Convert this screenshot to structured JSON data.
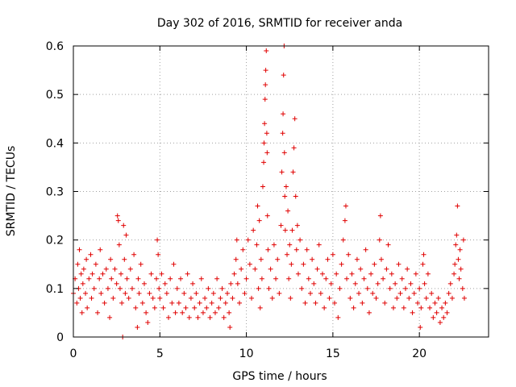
{
  "chart_data": {
    "type": "scatter",
    "title": "Day 302 of 2016, SRMTID for receiver anda",
    "xlabel": "GPS time / hours",
    "ylabel": "SRMTID / TECUs",
    "xlim": [
      0,
      24
    ],
    "ylim": [
      0,
      0.6
    ],
    "xticks": [
      0,
      5,
      10,
      15,
      20
    ],
    "xtick_labels": [
      "0",
      "5",
      "10",
      "15",
      "20"
    ],
    "yticks": [
      0,
      0.1,
      0.2,
      0.3,
      0.4,
      0.5,
      0.6
    ],
    "ytick_labels": [
      "0",
      "0.1",
      "0.2",
      "0.3",
      "0.4",
      "0.5",
      "0.6"
    ],
    "grid": true,
    "marker": "plus",
    "color": "#e00000",
    "series": [
      {
        "name": "SRMTID",
        "points": [
          [
            0.0,
            0.09
          ],
          [
            0.1,
            0.12
          ],
          [
            0.2,
            0.07
          ],
          [
            0.25,
            0.15
          ],
          [
            0.3,
            0.1
          ],
          [
            0.35,
            0.18
          ],
          [
            0.4,
            0.08
          ],
          [
            0.45,
            0.13
          ],
          [
            0.5,
            0.05
          ],
          [
            0.55,
            0.11
          ],
          [
            0.6,
            0.14
          ],
          [
            0.7,
            0.09
          ],
          [
            0.75,
            0.16
          ],
          [
            0.8,
            0.06
          ],
          [
            0.9,
            0.12
          ],
          [
            1.0,
            0.17
          ],
          [
            1.05,
            0.08
          ],
          [
            1.1,
            0.13
          ],
          [
            1.2,
            0.1
          ],
          [
            1.3,
            0.15
          ],
          [
            1.4,
            0.05
          ],
          [
            1.5,
            0.12
          ],
          [
            1.55,
            0.18
          ],
          [
            1.6,
            0.09
          ],
          [
            1.7,
            0.13
          ],
          [
            1.8,
            0.07
          ],
          [
            1.9,
            0.14
          ],
          [
            2.0,
            0.1
          ],
          [
            2.1,
            0.04
          ],
          [
            2.15,
            0.16
          ],
          [
            2.2,
            0.12
          ],
          [
            2.3,
            0.08
          ],
          [
            2.4,
            0.14
          ],
          [
            2.5,
            0.11
          ],
          [
            2.55,
            0.25
          ],
          [
            2.6,
            0.24
          ],
          [
            2.65,
            0.19
          ],
          [
            2.7,
            0.1
          ],
          [
            2.75,
            0.13
          ],
          [
            2.8,
            0.07
          ],
          [
            2.85,
            0.0
          ],
          [
            2.9,
            0.23
          ],
          [
            2.95,
            0.16
          ],
          [
            3.0,
            0.09
          ],
          [
            3.05,
            0.21
          ],
          [
            3.1,
            0.12
          ],
          [
            3.2,
            0.08
          ],
          [
            3.3,
            0.14
          ],
          [
            3.4,
            0.1
          ],
          [
            3.5,
            0.17
          ],
          [
            3.6,
            0.06
          ],
          [
            3.7,
            0.02
          ],
          [
            3.75,
            0.12
          ],
          [
            3.8,
            0.09
          ],
          [
            3.9,
            0.15
          ],
          [
            4.0,
            0.07
          ],
          [
            4.1,
            0.11
          ],
          [
            4.2,
            0.05
          ],
          [
            4.3,
            0.03
          ],
          [
            4.4,
            0.09
          ],
          [
            4.5,
            0.13
          ],
          [
            4.6,
            0.08
          ],
          [
            4.7,
            0.06
          ],
          [
            4.8,
            0.12
          ],
          [
            4.85,
            0.2
          ],
          [
            4.9,
            0.17
          ],
          [
            4.95,
            0.1
          ],
          [
            5.0,
            0.08
          ],
          [
            5.1,
            0.13
          ],
          [
            5.2,
            0.06
          ],
          [
            5.3,
            0.11
          ],
          [
            5.4,
            0.09
          ],
          [
            5.5,
            0.04
          ],
          [
            5.6,
            0.12
          ],
          [
            5.7,
            0.07
          ],
          [
            5.8,
            0.15
          ],
          [
            5.9,
            0.05
          ],
          [
            6.0,
            0.1
          ],
          [
            6.1,
            0.07
          ],
          [
            6.2,
            0.12
          ],
          [
            6.3,
            0.05
          ],
          [
            6.4,
            0.09
          ],
          [
            6.5,
            0.06
          ],
          [
            6.6,
            0.13
          ],
          [
            6.7,
            0.04
          ],
          [
            6.8,
            0.08
          ],
          [
            6.9,
            0.11
          ],
          [
            7.0,
            0.06
          ],
          [
            7.1,
            0.09
          ],
          [
            7.2,
            0.04
          ],
          [
            7.3,
            0.07
          ],
          [
            7.4,
            0.12
          ],
          [
            7.5,
            0.05
          ],
          [
            7.6,
            0.08
          ],
          [
            7.7,
            0.06
          ],
          [
            7.8,
            0.1
          ],
          [
            7.9,
            0.04
          ],
          [
            8.0,
            0.07
          ],
          [
            8.1,
            0.09
          ],
          [
            8.2,
            0.05
          ],
          [
            8.3,
            0.12
          ],
          [
            8.4,
            0.06
          ],
          [
            8.5,
            0.08
          ],
          [
            8.6,
            0.1
          ],
          [
            8.7,
            0.04
          ],
          [
            8.8,
            0.07
          ],
          [
            8.9,
            0.09
          ],
          [
            9.0,
            0.05
          ],
          [
            9.05,
            0.02
          ],
          [
            9.1,
            0.11
          ],
          [
            9.2,
            0.08
          ],
          [
            9.3,
            0.13
          ],
          [
            9.4,
            0.16
          ],
          [
            9.45,
            0.2
          ],
          [
            9.5,
            0.11
          ],
          [
            9.6,
            0.07
          ],
          [
            9.7,
            0.14
          ],
          [
            9.8,
            0.18
          ],
          [
            9.9,
            0.09
          ],
          [
            10.0,
            0.12
          ],
          [
            10.1,
            0.2
          ],
          [
            10.2,
            0.15
          ],
          [
            10.3,
            0.08
          ],
          [
            10.4,
            0.22
          ],
          [
            10.5,
            0.14
          ],
          [
            10.6,
            0.19
          ],
          [
            10.65,
            0.27
          ],
          [
            10.7,
            0.1
          ],
          [
            10.75,
            0.24
          ],
          [
            10.8,
            0.06
          ],
          [
            10.85,
            0.16
          ],
          [
            10.9,
            0.12
          ],
          [
            10.95,
            0.31
          ],
          [
            11.0,
            0.36
          ],
          [
            11.02,
            0.4
          ],
          [
            11.05,
            0.44
          ],
          [
            11.08,
            0.49
          ],
          [
            11.1,
            0.52
          ],
          [
            11.12,
            0.55
          ],
          [
            11.15,
            0.59
          ],
          [
            11.18,
            0.42
          ],
          [
            11.2,
            0.38
          ],
          [
            11.22,
            0.25
          ],
          [
            11.25,
            0.18
          ],
          [
            11.3,
            0.1
          ],
          [
            11.4,
            0.14
          ],
          [
            11.5,
            0.08
          ],
          [
            11.6,
            0.19
          ],
          [
            11.7,
            0.12
          ],
          [
            11.8,
            0.16
          ],
          [
            11.9,
            0.09
          ],
          [
            12.0,
            0.23
          ],
          [
            12.05,
            0.34
          ],
          [
            12.1,
            0.42
          ],
          [
            12.12,
            0.46
          ],
          [
            12.15,
            0.54
          ],
          [
            12.18,
            0.6
          ],
          [
            12.2,
            0.38
          ],
          [
            12.22,
            0.29
          ],
          [
            12.25,
            0.22
          ],
          [
            12.3,
            0.31
          ],
          [
            12.35,
            0.17
          ],
          [
            12.4,
            0.26
          ],
          [
            12.45,
            0.12
          ],
          [
            12.5,
            0.19
          ],
          [
            12.55,
            0.08
          ],
          [
            12.6,
            0.15
          ],
          [
            12.65,
            0.22
          ],
          [
            12.7,
            0.34
          ],
          [
            12.75,
            0.39
          ],
          [
            12.8,
            0.45
          ],
          [
            12.85,
            0.29
          ],
          [
            12.9,
            0.18
          ],
          [
            12.95,
            0.23
          ],
          [
            13.0,
            0.13
          ],
          [
            13.1,
            0.2
          ],
          [
            13.2,
            0.1
          ],
          [
            13.3,
            0.15
          ],
          [
            13.4,
            0.07
          ],
          [
            13.5,
            0.18
          ],
          [
            13.6,
            0.12
          ],
          [
            13.7,
            0.09
          ],
          [
            13.8,
            0.16
          ],
          [
            13.9,
            0.11
          ],
          [
            14.0,
            0.07
          ],
          [
            14.1,
            0.14
          ],
          [
            14.2,
            0.19
          ],
          [
            14.3,
            0.09
          ],
          [
            14.4,
            0.13
          ],
          [
            14.5,
            0.06
          ],
          [
            14.6,
            0.12
          ],
          [
            14.7,
            0.16
          ],
          [
            14.8,
            0.08
          ],
          [
            14.9,
            0.11
          ],
          [
            15.0,
            0.17
          ],
          [
            15.1,
            0.07
          ],
          [
            15.2,
            0.13
          ],
          [
            15.3,
            0.04
          ],
          [
            15.4,
            0.1
          ],
          [
            15.5,
            0.15
          ],
          [
            15.6,
            0.2
          ],
          [
            15.7,
            0.24
          ],
          [
            15.75,
            0.27
          ],
          [
            15.8,
            0.12
          ],
          [
            15.9,
            0.17
          ],
          [
            16.0,
            0.08
          ],
          [
            16.1,
            0.13
          ],
          [
            16.2,
            0.06
          ],
          [
            16.3,
            0.11
          ],
          [
            16.4,
            0.16
          ],
          [
            16.5,
            0.09
          ],
          [
            16.6,
            0.14
          ],
          [
            16.7,
            0.07
          ],
          [
            16.8,
            0.12
          ],
          [
            16.9,
            0.18
          ],
          [
            17.0,
            0.1
          ],
          [
            17.1,
            0.05
          ],
          [
            17.2,
            0.13
          ],
          [
            17.3,
            0.09
          ],
          [
            17.4,
            0.15
          ],
          [
            17.5,
            0.08
          ],
          [
            17.6,
            0.11
          ],
          [
            17.7,
            0.2
          ],
          [
            17.75,
            0.25
          ],
          [
            17.8,
            0.16
          ],
          [
            17.9,
            0.12
          ],
          [
            18.0,
            0.07
          ],
          [
            18.1,
            0.14
          ],
          [
            18.2,
            0.19
          ],
          [
            18.3,
            0.1
          ],
          [
            18.4,
            0.13
          ],
          [
            18.5,
            0.06
          ],
          [
            18.6,
            0.11
          ],
          [
            18.7,
            0.08
          ],
          [
            18.8,
            0.15
          ],
          [
            18.9,
            0.09
          ],
          [
            19.0,
            0.12
          ],
          [
            19.1,
            0.06
          ],
          [
            19.2,
            0.1
          ],
          [
            19.3,
            0.14
          ],
          [
            19.4,
            0.08
          ],
          [
            19.5,
            0.11
          ],
          [
            19.6,
            0.05
          ],
          [
            19.7,
            0.09
          ],
          [
            19.8,
            0.13
          ],
          [
            19.9,
            0.07
          ],
          [
            20.0,
            0.1
          ],
          [
            20.05,
            0.02
          ],
          [
            20.1,
            0.06
          ],
          [
            20.2,
            0.15
          ],
          [
            20.25,
            0.17
          ],
          [
            20.3,
            0.11
          ],
          [
            20.4,
            0.08
          ],
          [
            20.5,
            0.13
          ],
          [
            20.6,
            0.06
          ],
          [
            20.7,
            0.09
          ],
          [
            20.8,
            0.04
          ],
          [
            20.9,
            0.07
          ],
          [
            21.0,
            0.05
          ],
          [
            21.1,
            0.08
          ],
          [
            21.2,
            0.03
          ],
          [
            21.3,
            0.06
          ],
          [
            21.4,
            0.04
          ],
          [
            21.5,
            0.07
          ],
          [
            21.6,
            0.05
          ],
          [
            21.7,
            0.09
          ],
          [
            21.8,
            0.11
          ],
          [
            21.9,
            0.08
          ],
          [
            22.0,
            0.13
          ],
          [
            22.05,
            0.15
          ],
          [
            22.1,
            0.19
          ],
          [
            22.15,
            0.21
          ],
          [
            22.2,
            0.27
          ],
          [
            22.25,
            0.16
          ],
          [
            22.3,
            0.12
          ],
          [
            22.35,
            0.18
          ],
          [
            22.4,
            0.14
          ],
          [
            22.5,
            0.1
          ],
          [
            22.55,
            0.2
          ],
          [
            22.6,
            0.08
          ]
        ]
      }
    ]
  }
}
